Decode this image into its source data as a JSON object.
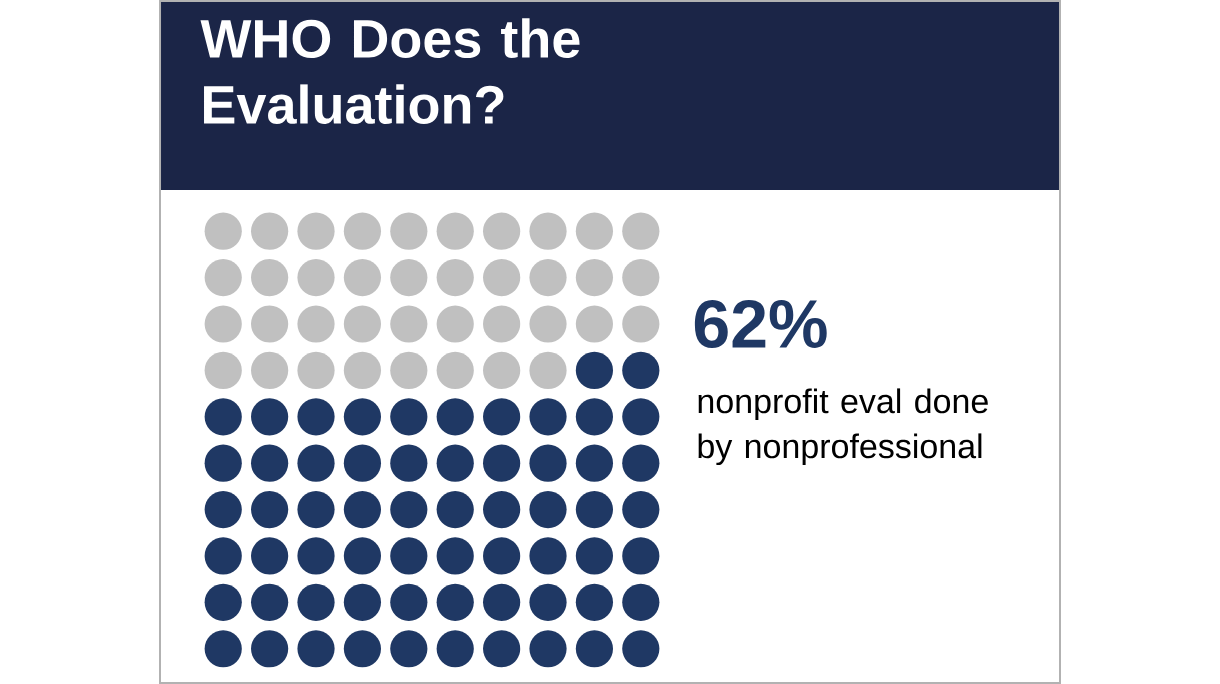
{
  "chart_data": {
    "type": "other",
    "title": "WHO Does the Evaluation?",
    "values": [
      62
    ],
    "value_labels": [
      "62%"
    ],
    "color": "#1f3864",
    "annotations": [
      "nonprofit eval done by nonprofessional"
    ]
  }
}
